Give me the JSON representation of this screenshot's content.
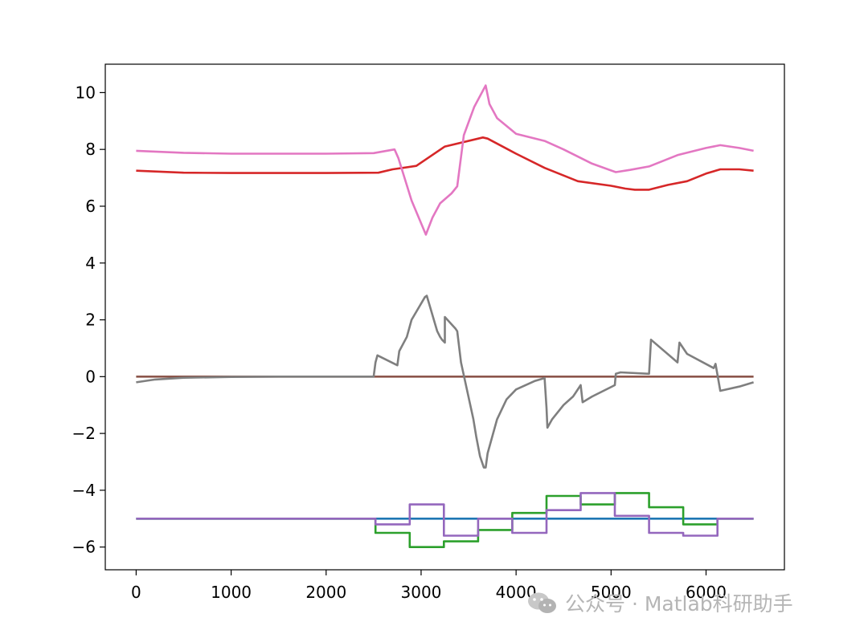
{
  "chart_data": {
    "type": "line",
    "title": "",
    "xlabel": "",
    "ylabel": "",
    "xlim": [
      -325,
      6825
    ],
    "ylim": [
      -6.8,
      11.0
    ],
    "xticks": [
      0,
      1000,
      2000,
      3000,
      4000,
      5000,
      6000
    ],
    "yticks": [
      -6,
      -4,
      -2,
      0,
      2,
      4,
      6,
      8,
      10
    ],
    "legend": "none",
    "grid": false,
    "series": [
      {
        "color": "#1f77b4",
        "step": false,
        "x": [
          0,
          6500
        ],
        "y": [
          -5,
          -5
        ]
      },
      {
        "color": "#2ca02c",
        "step": true,
        "x": [
          0,
          2520,
          2880,
          3240,
          3600,
          3960,
          4320,
          4680,
          5040,
          5400,
          5760,
          6120,
          6500
        ],
        "y": [
          -5,
          -5.5,
          -6.0,
          -5.8,
          -5.4,
          -4.8,
          -4.2,
          -4.5,
          -4.1,
          -4.6,
          -5.2,
          -5.0,
          -5.0
        ]
      },
      {
        "color": "#d62728",
        "step": false,
        "x": [
          0,
          500,
          1000,
          2000,
          2550,
          2700,
          2950,
          3250,
          3650,
          3700,
          4000,
          4300,
          4650,
          5000,
          5150,
          5250,
          5400,
          5600,
          5800,
          6000,
          6150,
          6350,
          6500
        ],
        "y": [
          7.25,
          7.18,
          7.17,
          7.17,
          7.18,
          7.3,
          7.42,
          8.1,
          8.42,
          8.38,
          7.85,
          7.35,
          6.88,
          6.72,
          6.62,
          6.58,
          6.58,
          6.75,
          6.88,
          7.15,
          7.3,
          7.3,
          7.25
        ]
      },
      {
        "color": "#8c564b",
        "step": false,
        "x": [
          0,
          6500
        ],
        "y": [
          0,
          0
        ]
      },
      {
        "color": "#9467bd",
        "step": true,
        "x": [
          0,
          2520,
          2880,
          3240,
          3600,
          3960,
          4320,
          4680,
          5040,
          5400,
          5760,
          6120,
          6500
        ],
        "y": [
          -5,
          -5.2,
          -4.5,
          -5.6,
          -5.0,
          -5.5,
          -4.7,
          -4.1,
          -4.9,
          -5.5,
          -5.6,
          -5.0,
          -5.0
        ]
      },
      {
        "color": "#e377c2",
        "step": false,
        "x": [
          0,
          500,
          1000,
          2000,
          2500,
          2720,
          2760,
          2900,
          3050,
          3120,
          3200,
          3320,
          3380,
          3450,
          3560,
          3680,
          3720,
          3800,
          4000,
          4300,
          4500,
          4800,
          5050,
          5200,
          5400,
          5700,
          6000,
          6150,
          6350,
          6500
        ],
        "y": [
          7.95,
          7.88,
          7.85,
          7.85,
          7.87,
          8.0,
          7.7,
          6.2,
          5.0,
          5.6,
          6.1,
          6.45,
          6.7,
          8.5,
          9.5,
          10.25,
          9.6,
          9.1,
          8.55,
          8.3,
          8.0,
          7.5,
          7.2,
          7.28,
          7.4,
          7.8,
          8.05,
          8.15,
          8.05,
          7.95
        ]
      },
      {
        "color": "#7f7f7f",
        "step": false,
        "x": [
          0,
          200,
          500,
          1000,
          1500,
          2000,
          2500,
          2520,
          2540,
          2750,
          2770,
          2850,
          2900,
          3040,
          3060,
          3170,
          3200,
          3220,
          3250,
          3250,
          3360,
          3380,
          3420,
          3550,
          3580,
          3620,
          3660,
          3680,
          3700,
          3800,
          3900,
          4000,
          4200,
          4300,
          4320,
          4330,
          4380,
          4500,
          4600,
          4620,
          4680,
          4700,
          4800,
          5040,
          5050,
          5100,
          5400,
          5420,
          5700,
          5720,
          5760,
          5800,
          6080,
          6100,
          6150,
          6350,
          6500
        ],
        "y": [
          -0.2,
          -0.1,
          -0.04,
          -0.01,
          0,
          0,
          0,
          0.5,
          0.75,
          0.4,
          0.9,
          1.4,
          2.0,
          2.8,
          2.85,
          1.6,
          1.4,
          1.3,
          1.2,
          2.1,
          1.7,
          1.6,
          0.5,
          -1.5,
          -2.1,
          -2.8,
          -3.2,
          -3.2,
          -2.7,
          -1.5,
          -0.8,
          -0.45,
          -0.15,
          -0.05,
          -1.1,
          -1.8,
          -1.5,
          -1.0,
          -0.7,
          -0.6,
          -0.3,
          -0.9,
          -0.7,
          -0.3,
          0.1,
          0.15,
          0.1,
          1.3,
          0.5,
          1.2,
          1.0,
          0.8,
          0.3,
          0.45,
          -0.5,
          -0.35,
          -0.2
        ]
      }
    ]
  },
  "watermark": {
    "text": "公众号 · Matlab科研助手",
    "icon": "wechat-icon"
  }
}
